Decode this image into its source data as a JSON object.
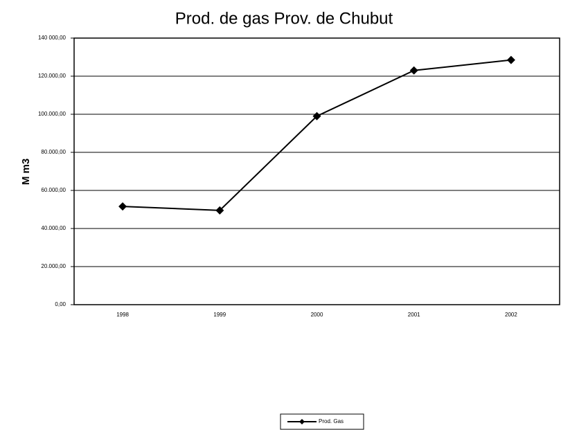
{
  "chart_data": {
    "type": "line",
    "title": "Prod. de gas Prov. de Chubut",
    "y_label": "M m3",
    "categories": [
      "1998",
      "1999",
      "2000",
      "2001",
      "2002"
    ],
    "series": [
      {
        "name": "Prod. Gas",
        "color": "#000000",
        "values": [
          51600,
          49500,
          99000,
          123000,
          128500
        ]
      }
    ],
    "ylim": [
      0,
      140000
    ],
    "yticks": [
      {
        "value": 0,
        "label": "0,00"
      },
      {
        "value": 20000,
        "label": "20.000,00"
      },
      {
        "value": 40000,
        "label": "40.000,00"
      },
      {
        "value": 60000,
        "label": "60.000,00"
      },
      {
        "value": 80000,
        "label": "80.000,00"
      },
      {
        "value": 100000,
        "label": "100.000,00"
      },
      {
        "value": 120000,
        "label": "120.000,00"
      },
      {
        "value": 140000,
        "label": "140 000,00"
      }
    ],
    "grid": true,
    "legend": "bottom"
  }
}
